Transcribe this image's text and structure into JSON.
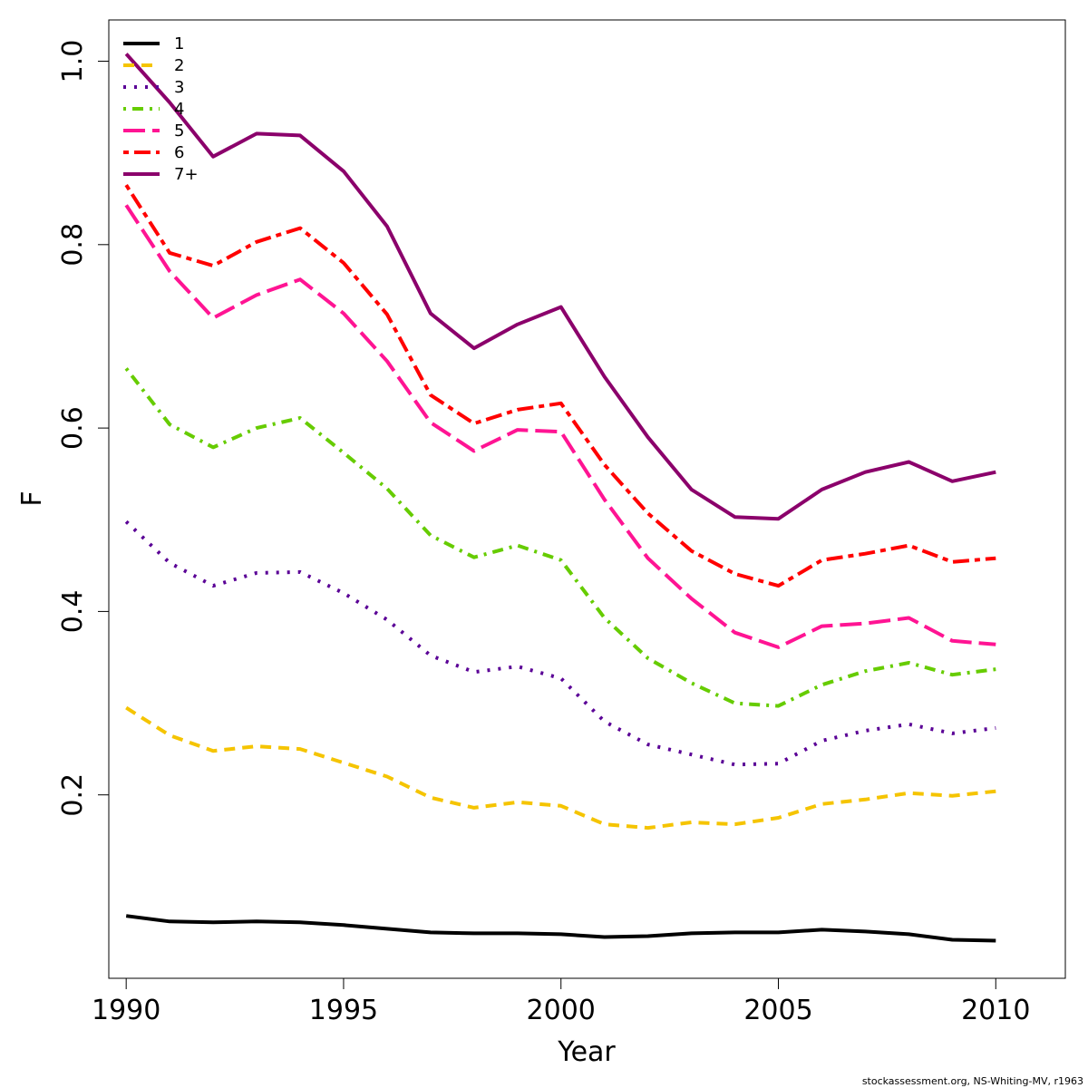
{
  "chart_data": {
    "type": "line",
    "xlabel": "Year",
    "ylabel": "F",
    "xlim": [
      1989.6,
      2011.6
    ],
    "ylim": [
      0.0,
      1.045
    ],
    "x_ticks": [
      1990,
      1995,
      2000,
      2005,
      2010
    ],
    "y_ticks": [
      0.2,
      0.4,
      0.6,
      0.8,
      1.0
    ],
    "x_tick_labels": [
      "1990",
      "1995",
      "2000",
      "2005",
      "2010"
    ],
    "y_tick_labels": [
      "0.2",
      "0.4",
      "0.6",
      "0.8",
      "1.0"
    ],
    "grid": false,
    "legend_position": "top-left",
    "x": [
      1990,
      1991,
      1992,
      1993,
      1994,
      1995,
      1996,
      1997,
      1998,
      1999,
      2000,
      2001,
      2002,
      2003,
      2004,
      2005,
      2006,
      2007,
      2008,
      2009,
      2010
    ],
    "series": [
      {
        "name": "1",
        "color": "#000000",
        "dash": "solid",
        "values": [
          0.068,
          0.062,
          0.061,
          0.062,
          0.061,
          0.058,
          0.054,
          0.05,
          0.049,
          0.049,
          0.048,
          0.045,
          0.046,
          0.049,
          0.05,
          0.05,
          0.053,
          0.051,
          0.048,
          0.042,
          0.041
        ]
      },
      {
        "name": "2",
        "color": "#f5c400",
        "dash": "dashed",
        "values": [
          0.295,
          0.265,
          0.248,
          0.253,
          0.25,
          0.235,
          0.22,
          0.197,
          0.186,
          0.192,
          0.188,
          0.168,
          0.164,
          0.17,
          0.168,
          0.175,
          0.19,
          0.195,
          0.202,
          0.199,
          0.204
        ]
      },
      {
        "name": "3",
        "color": "#5a0096",
        "dash": "dotted",
        "values": [
          0.498,
          0.453,
          0.428,
          0.442,
          0.443,
          0.42,
          0.391,
          0.352,
          0.334,
          0.34,
          0.327,
          0.28,
          0.255,
          0.244,
          0.233,
          0.234,
          0.259,
          0.27,
          0.277,
          0.267,
          0.273
        ]
      },
      {
        "name": "4",
        "color": "#66cc00",
        "dash": "dotdash",
        "values": [
          0.665,
          0.604,
          0.579,
          0.6,
          0.611,
          0.573,
          0.534,
          0.483,
          0.459,
          0.472,
          0.456,
          0.393,
          0.349,
          0.322,
          0.3,
          0.297,
          0.32,
          0.335,
          0.344,
          0.331,
          0.337
        ]
      },
      {
        "name": "5",
        "color": "#ff1493",
        "dash": "longdash",
        "values": [
          0.843,
          0.771,
          0.72,
          0.745,
          0.762,
          0.725,
          0.673,
          0.606,
          0.575,
          0.598,
          0.596,
          0.522,
          0.458,
          0.414,
          0.377,
          0.361,
          0.384,
          0.387,
          0.393,
          0.368,
          0.364
        ]
      },
      {
        "name": "6",
        "color": "#ff0000",
        "dash": "twodash",
        "values": [
          0.865,
          0.791,
          0.777,
          0.803,
          0.818,
          0.78,
          0.724,
          0.636,
          0.605,
          0.62,
          0.627,
          0.56,
          0.507,
          0.466,
          0.441,
          0.428,
          0.456,
          0.463,
          0.472,
          0.454,
          0.458
        ]
      },
      {
        "name": "7+",
        "color": "#8b006b",
        "dash": "solid",
        "values": [
          1.008,
          0.955,
          0.896,
          0.921,
          0.919,
          0.88,
          0.82,
          0.725,
          0.687,
          0.713,
          0.732,
          0.656,
          0.59,
          0.533,
          0.503,
          0.501,
          0.533,
          0.552,
          0.563,
          0.542,
          0.552
        ]
      }
    ],
    "credit": "stockassessment.org, NS-Whiting-MV, r1963"
  }
}
